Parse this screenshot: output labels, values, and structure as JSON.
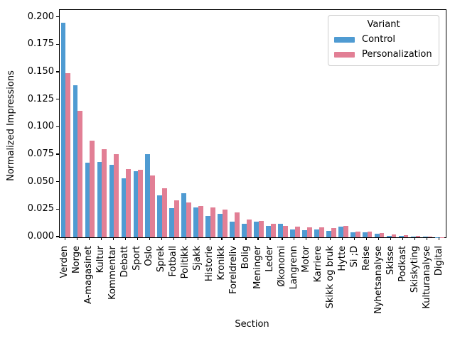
{
  "figure": {
    "xlabel": "Section",
    "ylabel": "Normalized Impressions",
    "background_color": "#ffffff",
    "axis_color": "#000000"
  },
  "legend": {
    "title": "Variant",
    "entries": [
      {
        "label": "Control",
        "color": "#4f9bd2"
      },
      {
        "label": "Personalization",
        "color": "#e27f95"
      }
    ]
  },
  "chart_data": {
    "type": "bar",
    "title": "",
    "xlabel": "Section",
    "ylabel": "Normalized Impressions",
    "grid": false,
    "legend_position": "upper right",
    "legend_title": "Variant",
    "ylim": [
      0,
      0.2069
    ],
    "yticks": [
      0.0,
      0.025,
      0.05,
      0.075,
      0.1,
      0.125,
      0.15,
      0.175,
      0.2
    ],
    "categories": [
      "Verden",
      "Norge",
      "A-magasinet",
      "Kultur",
      "Kommentar",
      "Debatt",
      "Sport",
      "Oslo",
      "Sprek",
      "Fotball",
      "Politikk",
      "Sjakk",
      "Historie",
      "Kronikk",
      "Foreldreliv",
      "Bolig",
      "Meninger",
      "Leder",
      "Økonomi",
      "Langrenn",
      "Motor",
      "Karriere",
      "Skikk og bruk",
      "Hytte",
      "Si ;D",
      "Reise",
      "Nyhetsanalyse",
      "Skisse",
      "Podkast",
      "Skiskyting",
      "Kulturanalyse",
      "Digital"
    ],
    "series": [
      {
        "name": "Control",
        "color": "#4f9bd2",
        "values": [
          0.195,
          0.1385,
          0.068,
          0.0685,
          0.0658,
          0.0538,
          0.0599,
          0.0754,
          0.0382,
          0.0268,
          0.0399,
          0.0274,
          0.0195,
          0.0216,
          0.0145,
          0.0124,
          0.0145,
          0.0104,
          0.0124,
          0.0072,
          0.0066,
          0.0072,
          0.006,
          0.0094,
          0.0048,
          0.0043,
          0.0035,
          0.0015,
          0.0013,
          0.0008,
          0.0004,
          0.0002
        ]
      },
      {
        "name": "Personalization",
        "color": "#e27f95",
        "values": [
          0.1495,
          0.1148,
          0.0878,
          0.0804,
          0.0754,
          0.0618,
          0.0612,
          0.0565,
          0.0446,
          0.0336,
          0.0318,
          0.0285,
          0.027,
          0.0255,
          0.0225,
          0.0162,
          0.0149,
          0.0124,
          0.0104,
          0.0094,
          0.0091,
          0.0089,
          0.0083,
          0.0104,
          0.0055,
          0.005,
          0.0039,
          0.0024,
          0.0019,
          0.0011,
          0.0005,
          0.0003
        ]
      }
    ]
  }
}
